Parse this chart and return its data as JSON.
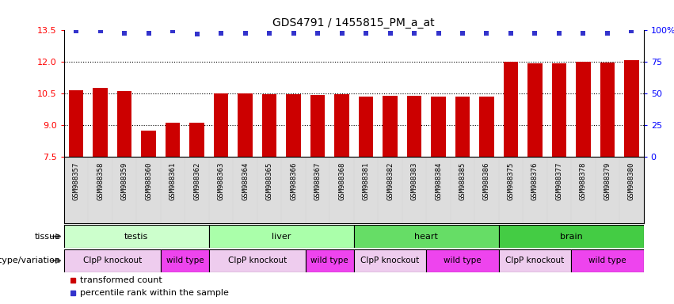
{
  "title": "GDS4791 / 1455815_PM_a_at",
  "samples": [
    "GSM988357",
    "GSM988358",
    "GSM988359",
    "GSM988360",
    "GSM988361",
    "GSM988362",
    "GSM988363",
    "GSM988364",
    "GSM988365",
    "GSM988366",
    "GSM988367",
    "GSM988368",
    "GSM988381",
    "GSM988382",
    "GSM988383",
    "GSM988384",
    "GSM988385",
    "GSM988386",
    "GSM988375",
    "GSM988376",
    "GSM988377",
    "GSM988378",
    "GSM988379",
    "GSM988380"
  ],
  "bar_values": [
    10.65,
    10.75,
    10.6,
    8.75,
    9.1,
    9.1,
    10.5,
    10.5,
    10.47,
    10.47,
    10.42,
    10.47,
    10.35,
    10.4,
    10.4,
    10.35,
    10.37,
    10.35,
    12.0,
    11.95,
    11.95,
    12.0,
    11.97,
    12.1
  ],
  "percentile_values": [
    13.48,
    13.48,
    13.35,
    13.35,
    13.48,
    13.32,
    13.35,
    13.35,
    13.35,
    13.35,
    13.35,
    13.35,
    13.35,
    13.35,
    13.35,
    13.35,
    13.35,
    13.35,
    13.35,
    13.35,
    13.35,
    13.35,
    13.35,
    13.48
  ],
  "bar_color": "#cc0000",
  "dot_color": "#3333cc",
  "ylim_left": [
    7.5,
    13.5
  ],
  "ylim_right": [
    0,
    100
  ],
  "yticks_left": [
    7.5,
    9.0,
    10.5,
    12.0,
    13.5
  ],
  "ytick_right_labels": [
    "0",
    "25",
    "50",
    "75",
    "100%"
  ],
  "ytick_right_values": [
    0,
    25,
    50,
    75,
    100
  ],
  "dotted_lines": [
    9.0,
    10.5,
    12.0
  ],
  "tissue_groups": [
    {
      "label": "testis",
      "start": 0,
      "end": 6,
      "color": "#ccffcc"
    },
    {
      "label": "liver",
      "start": 6,
      "end": 12,
      "color": "#aaffaa"
    },
    {
      "label": "heart",
      "start": 12,
      "end": 18,
      "color": "#66dd66"
    },
    {
      "label": "brain",
      "start": 18,
      "end": 24,
      "color": "#44cc44"
    }
  ],
  "genotype_groups": [
    {
      "label": "ClpP knockout",
      "start": 0,
      "end": 4,
      "color": "#eeccee"
    },
    {
      "label": "wild type",
      "start": 4,
      "end": 6,
      "color": "#ee44ee"
    },
    {
      "label": "ClpP knockout",
      "start": 6,
      "end": 10,
      "color": "#eeccee"
    },
    {
      "label": "wild type",
      "start": 10,
      "end": 12,
      "color": "#ee44ee"
    },
    {
      "label": "ClpP knockout",
      "start": 12,
      "end": 15,
      "color": "#eeccee"
    },
    {
      "label": "wild type",
      "start": 15,
      "end": 18,
      "color": "#ee44ee"
    },
    {
      "label": "ClpP knockout",
      "start": 18,
      "end": 21,
      "color": "#eeccee"
    },
    {
      "label": "wild type",
      "start": 21,
      "end": 24,
      "color": "#ee44ee"
    }
  ],
  "legend_items": [
    {
      "label": "transformed count",
      "color": "#cc0000",
      "marker": "s"
    },
    {
      "label": "percentile rank within the sample",
      "color": "#3333cc",
      "marker": "s"
    }
  ],
  "tissue_label": "tissue",
  "genotype_label": "genotype/variation",
  "xticklabel_bg": "#dddddd"
}
